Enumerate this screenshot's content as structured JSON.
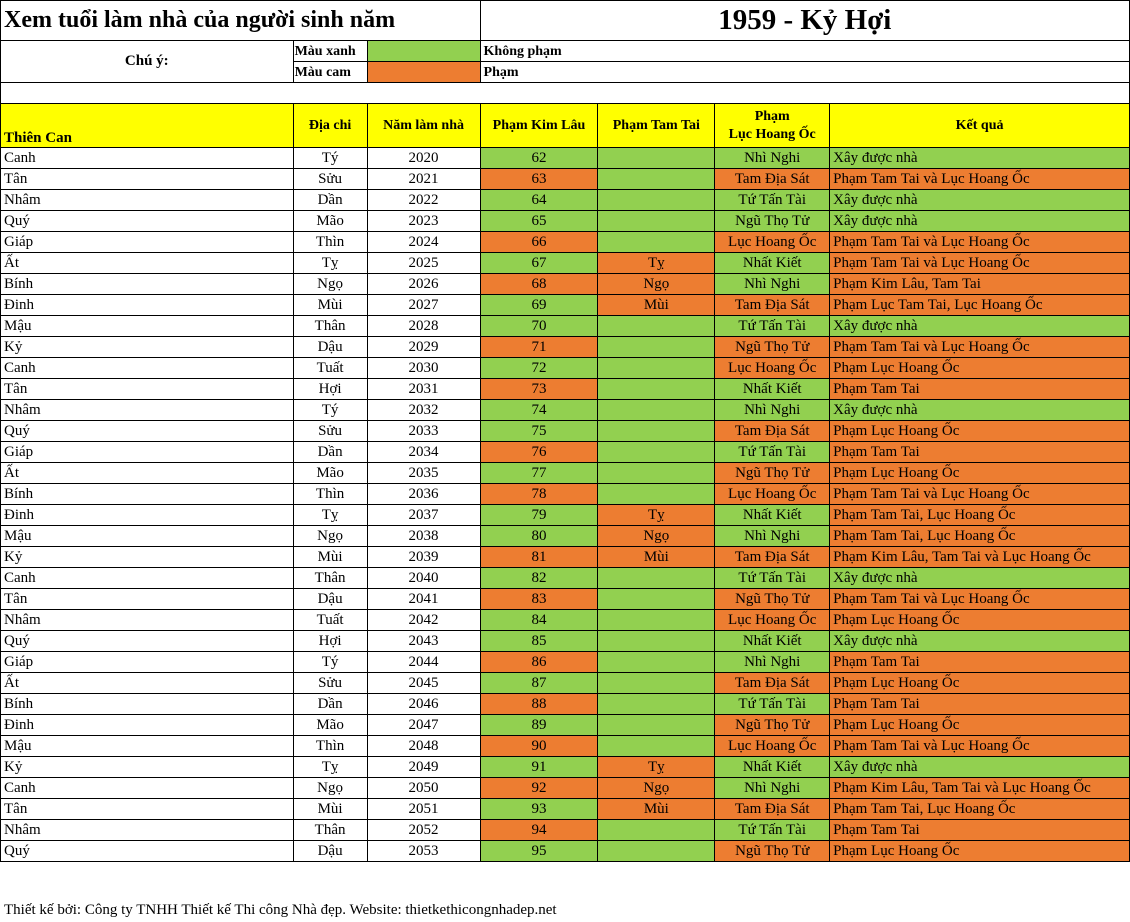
{
  "title": {
    "left": "Xem tuổi làm nhà của người sinh năm",
    "right": "1959 - Kỷ Hợi"
  },
  "legend": {
    "note_label": "Chú ý:",
    "items": [
      {
        "label": "Màu xanh",
        "color": "#92d050",
        "meaning": "Không phạm"
      },
      {
        "label": "Màu cam",
        "color": "#ed7d31",
        "meaning": "Phạm"
      }
    ]
  },
  "colors": {
    "green": "#92d050",
    "orange": "#ed7d31",
    "header": "#ffff00"
  },
  "headers": {
    "thien_can": "Thiên Can",
    "dia_chi": "Địa chi",
    "nam": "Năm làm nhà",
    "kim_lau": "Phạm Kim Lâu",
    "tam_tai": "Phạm Tam Tai",
    "hoang_oc_1": "Phạm",
    "hoang_oc_2": "Lục Hoang Ốc",
    "ket_qua": "Kết quả"
  },
  "rows": [
    {
      "can": "Canh",
      "chi": "Tý",
      "year": "2020",
      "kl": "62",
      "kl_ok": true,
      "tt": "",
      "tt_ok": true,
      "ho": "Nhì Nghi",
      "ho_ok": true,
      "kq": "Xây được nhà",
      "kq_ok": true
    },
    {
      "can": "Tân",
      "chi": "Sửu",
      "year": "2021",
      "kl": "63",
      "kl_ok": false,
      "tt": "",
      "tt_ok": true,
      "ho": "Tam Địa Sát",
      "ho_ok": false,
      "kq": "Phạm Tam Tai và Lục Hoang Ốc",
      "kq_ok": false
    },
    {
      "can": "Nhâm",
      "chi": "Dần",
      "year": "2022",
      "kl": "64",
      "kl_ok": true,
      "tt": "",
      "tt_ok": true,
      "ho": "Tứ Tấn Tài",
      "ho_ok": true,
      "kq": "Xây được nhà",
      "kq_ok": true
    },
    {
      "can": "Quý",
      "chi": "Mão",
      "year": "2023",
      "kl": "65",
      "kl_ok": true,
      "tt": "",
      "tt_ok": true,
      "ho": "Ngũ Thọ Tử",
      "ho_ok": true,
      "kq": "Xây được nhà",
      "kq_ok": true
    },
    {
      "can": "Giáp",
      "chi": "Thìn",
      "year": "2024",
      "kl": "66",
      "kl_ok": false,
      "tt": "",
      "tt_ok": true,
      "ho": "Lục Hoang Ốc",
      "ho_ok": false,
      "kq": "Phạm Tam Tai và Lục Hoang Ốc",
      "kq_ok": false
    },
    {
      "can": "Ất",
      "chi": "Tỵ",
      "year": "2025",
      "kl": "67",
      "kl_ok": true,
      "tt": "Tỵ",
      "tt_ok": false,
      "ho": "Nhất Kiết",
      "ho_ok": true,
      "kq": "Phạm Tam Tai và Lục Hoang Ốc",
      "kq_ok": false
    },
    {
      "can": "Bính",
      "chi": "Ngọ",
      "year": "2026",
      "kl": "68",
      "kl_ok": false,
      "tt": "Ngọ",
      "tt_ok": false,
      "ho": "Nhì Nghi",
      "ho_ok": true,
      "kq": "Phạm Kim Lâu, Tam Tai",
      "kq_ok": false
    },
    {
      "can": "Đinh",
      "chi": "Mùi",
      "year": "2027",
      "kl": "69",
      "kl_ok": true,
      "tt": "Mùi",
      "tt_ok": false,
      "ho": "Tam Địa Sát",
      "ho_ok": false,
      "kq": "Phạm Lục Tam Tai, Lục Hoang Ốc",
      "kq_ok": false
    },
    {
      "can": "Mậu",
      "chi": "Thân",
      "year": "2028",
      "kl": "70",
      "kl_ok": true,
      "tt": "",
      "tt_ok": true,
      "ho": "Tứ Tấn Tài",
      "ho_ok": true,
      "kq": "Xây được nhà",
      "kq_ok": true
    },
    {
      "can": "Kỷ",
      "chi": "Dậu",
      "year": "2029",
      "kl": "71",
      "kl_ok": false,
      "tt": "",
      "tt_ok": true,
      "ho": "Ngũ Thọ Tử",
      "ho_ok": false,
      "kq": "Phạm Tam Tai và Lục Hoang Ốc",
      "kq_ok": false
    },
    {
      "can": "Canh",
      "chi": "Tuất",
      "year": "2030",
      "kl": "72",
      "kl_ok": true,
      "tt": "",
      "tt_ok": true,
      "ho": "Lục Hoang Ốc",
      "ho_ok": false,
      "kq": "Phạm Lục Hoang Ốc",
      "kq_ok": false
    },
    {
      "can": "Tân",
      "chi": "Hợi",
      "year": "2031",
      "kl": "73",
      "kl_ok": false,
      "tt": "",
      "tt_ok": true,
      "ho": "Nhất Kiết",
      "ho_ok": true,
      "kq": "Phạm Tam Tai",
      "kq_ok": false
    },
    {
      "can": "Nhâm",
      "chi": "Tý",
      "year": "2032",
      "kl": "74",
      "kl_ok": true,
      "tt": "",
      "tt_ok": true,
      "ho": "Nhì Nghi",
      "ho_ok": true,
      "kq": "Xây được nhà",
      "kq_ok": true
    },
    {
      "can": "Quý",
      "chi": "Sửu",
      "year": "2033",
      "kl": "75",
      "kl_ok": true,
      "tt": "",
      "tt_ok": true,
      "ho": "Tam Địa Sát",
      "ho_ok": false,
      "kq": "Phạm Lục Hoang Ốc",
      "kq_ok": false
    },
    {
      "can": "Giáp",
      "chi": "Dần",
      "year": "2034",
      "kl": "76",
      "kl_ok": false,
      "tt": "",
      "tt_ok": true,
      "ho": "Tứ Tấn Tài",
      "ho_ok": true,
      "kq": "Phạm Tam Tai",
      "kq_ok": false
    },
    {
      "can": "Ất",
      "chi": "Mão",
      "year": "2035",
      "kl": "77",
      "kl_ok": true,
      "tt": "",
      "tt_ok": true,
      "ho": "Ngũ Thọ Tử",
      "ho_ok": false,
      "kq": "Phạm Lục Hoang Ốc",
      "kq_ok": false
    },
    {
      "can": "Bính",
      "chi": "Thìn",
      "year": "2036",
      "kl": "78",
      "kl_ok": false,
      "tt": "",
      "tt_ok": true,
      "ho": "Lục Hoang Ốc",
      "ho_ok": false,
      "kq": "Phạm Tam Tai và Lục Hoang Ốc",
      "kq_ok": false
    },
    {
      "can": "Đinh",
      "chi": "Tỵ",
      "year": "2037",
      "kl": "79",
      "kl_ok": true,
      "tt": "Tỵ",
      "tt_ok": false,
      "ho": "Nhất Kiết",
      "ho_ok": true,
      "kq": "Phạm Tam Tai, Lục Hoang Ốc",
      "kq_ok": false
    },
    {
      "can": "Mậu",
      "chi": "Ngọ",
      "year": "2038",
      "kl": "80",
      "kl_ok": true,
      "tt": "Ngọ",
      "tt_ok": false,
      "ho": "Nhì Nghi",
      "ho_ok": true,
      "kq": "Phạm Tam Tai, Lục Hoang Ốc",
      "kq_ok": false
    },
    {
      "can": "Kỷ",
      "chi": "Mùi",
      "year": "2039",
      "kl": "81",
      "kl_ok": false,
      "tt": "Mùi",
      "tt_ok": false,
      "ho": "Tam Địa Sát",
      "ho_ok": false,
      "kq": "Phạm Kim Lâu, Tam Tai và Lục Hoang Ốc",
      "kq_ok": false
    },
    {
      "can": "Canh",
      "chi": "Thân",
      "year": "2040",
      "kl": "82",
      "kl_ok": true,
      "tt": "",
      "tt_ok": true,
      "ho": "Tứ Tấn Tài",
      "ho_ok": true,
      "kq": "Xây được nhà",
      "kq_ok": true
    },
    {
      "can": "Tân",
      "chi": "Dậu",
      "year": "2041",
      "kl": "83",
      "kl_ok": false,
      "tt": "",
      "tt_ok": true,
      "ho": "Ngũ Thọ Tử",
      "ho_ok": false,
      "kq": "Phạm Tam Tai và Lục Hoang Ốc",
      "kq_ok": false
    },
    {
      "can": "Nhâm",
      "chi": "Tuất",
      "year": "2042",
      "kl": "84",
      "kl_ok": true,
      "tt": "",
      "tt_ok": true,
      "ho": "Lục Hoang Ốc",
      "ho_ok": false,
      "kq": "Phạm Lục Hoang Ốc",
      "kq_ok": false
    },
    {
      "can": "Quý",
      "chi": "Hợi",
      "year": "2043",
      "kl": "85",
      "kl_ok": true,
      "tt": "",
      "tt_ok": true,
      "ho": "Nhất Kiết",
      "ho_ok": true,
      "kq": "Xây được nhà",
      "kq_ok": true
    },
    {
      "can": "Giáp",
      "chi": "Tý",
      "year": "2044",
      "kl": "86",
      "kl_ok": false,
      "tt": "",
      "tt_ok": true,
      "ho": "Nhì Nghi",
      "ho_ok": true,
      "kq": "Phạm Tam Tai",
      "kq_ok": false
    },
    {
      "can": "Ất",
      "chi": "Sửu",
      "year": "2045",
      "kl": "87",
      "kl_ok": true,
      "tt": "",
      "tt_ok": true,
      "ho": "Tam Địa Sát",
      "ho_ok": false,
      "kq": "Phạm Lục Hoang Ốc",
      "kq_ok": false
    },
    {
      "can": "Bính",
      "chi": "Dần",
      "year": "2046",
      "kl": "88",
      "kl_ok": false,
      "tt": "",
      "tt_ok": true,
      "ho": "Tứ Tấn Tài",
      "ho_ok": true,
      "kq": "Phạm Tam Tai",
      "kq_ok": false
    },
    {
      "can": "Đinh",
      "chi": "Mão",
      "year": "2047",
      "kl": "89",
      "kl_ok": true,
      "tt": "",
      "tt_ok": true,
      "ho": "Ngũ Thọ Tử",
      "ho_ok": false,
      "kq": "Phạm Lục Hoang Ốc",
      "kq_ok": false
    },
    {
      "can": "Mậu",
      "chi": "Thìn",
      "year": "2048",
      "kl": "90",
      "kl_ok": false,
      "tt": "",
      "tt_ok": true,
      "ho": "Lục Hoang Ốc",
      "ho_ok": false,
      "kq": "Phạm Tam Tai và Lục Hoang Ốc",
      "kq_ok": false
    },
    {
      "can": "Kỷ",
      "chi": "Tỵ",
      "year": "2049",
      "kl": "91",
      "kl_ok": true,
      "tt": "Tỵ",
      "tt_ok": false,
      "ho": "Nhất Kiết",
      "ho_ok": true,
      "kq": "Xây được nhà",
      "kq_ok": true
    },
    {
      "can": "Canh",
      "chi": "Ngọ",
      "year": "2050",
      "kl": "92",
      "kl_ok": false,
      "tt": "Ngọ",
      "tt_ok": false,
      "ho": "Nhì Nghi",
      "ho_ok": true,
      "kq": "Phạm Kim Lâu, Tam Tai và Lục Hoang Ốc",
      "kq_ok": false
    },
    {
      "can": "Tân",
      "chi": "Mùi",
      "year": "2051",
      "kl": "93",
      "kl_ok": true,
      "tt": "Mùi",
      "tt_ok": false,
      "ho": "Tam Địa Sát",
      "ho_ok": false,
      "kq": "Phạm Tam Tai, Lục Hoang Ốc",
      "kq_ok": false
    },
    {
      "can": "Nhâm",
      "chi": "Thân",
      "year": "2052",
      "kl": "94",
      "kl_ok": false,
      "tt": "",
      "tt_ok": true,
      "ho": "Tứ Tấn Tài",
      "ho_ok": true,
      "kq": "Phạm Tam Tai",
      "kq_ok": false
    },
    {
      "can": "Quý",
      "chi": "Dậu",
      "year": "2053",
      "kl": "95",
      "kl_ok": true,
      "tt": "",
      "tt_ok": true,
      "ho": "Ngũ Thọ Tử",
      "ho_ok": false,
      "kq": "Phạm Lục Hoang Ốc",
      "kq_ok": false
    }
  ],
  "footer": "Thiết kế bởi: Công ty TNHH Thiết kế Thi công Nhà đẹp. Website: thietkethicongnhadep.net"
}
